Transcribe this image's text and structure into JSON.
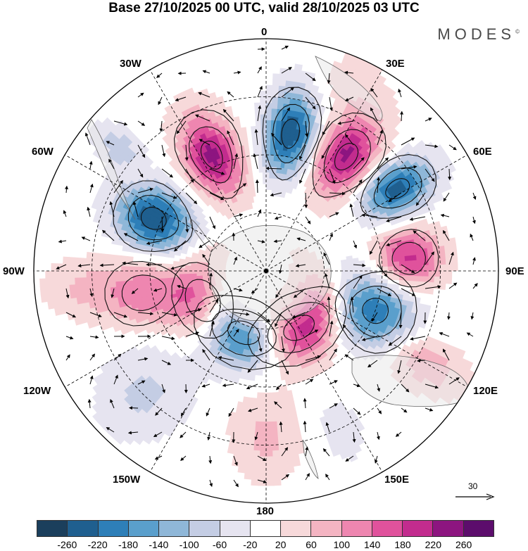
{
  "title": "Base 27/10/2025 00 UTC, valid 28/10/2025 03 UTC",
  "brand": "MODES",
  "brand_mark": "©",
  "longitude_labels": {
    "lon_0": "0",
    "lon_30e": "30E",
    "lon_60e": "60E",
    "lon_90e": "90E",
    "lon_120e": "120E",
    "lon_150e": "150E",
    "lon_180": "180",
    "lon_150w": "150W",
    "lon_120w": "120W",
    "lon_90w": "90W",
    "lon_60w": "60W",
    "lon_30w": "30W"
  },
  "vector_scale": {
    "label": "30"
  },
  "colorbar": {
    "colors": [
      "#1b3f5c",
      "#1f5f8f",
      "#2e7fb8",
      "#5a9fcc",
      "#8fb7d8",
      "#c4cde4",
      "#e6e4f0",
      "#ffffff",
      "#f7d9da",
      "#f4b4c2",
      "#ee86b0",
      "#e0529c",
      "#c22c8e",
      "#8d1580",
      "#5c0d6c"
    ],
    "ticks": [
      "-260",
      "-220",
      "-180",
      "-140",
      "-100",
      "-60",
      "-20",
      "20",
      "60",
      "100",
      "140",
      "180",
      "220",
      "260"
    ]
  },
  "field": {
    "anomalies": [
      {
        "lon": 10,
        "colat": 36,
        "value": -255,
        "lat_spread": 8,
        "lon_spread": 9
      },
      {
        "lon": 35,
        "colat": 36,
        "value": 230,
        "lat_spread": 8,
        "lon_spread": 10
      },
      {
        "lon": 58,
        "colat": 40,
        "value": -235,
        "lat_spread": 7,
        "lon_spread": 9
      },
      {
        "lon": 85,
        "colat": 37,
        "value": 190,
        "lat_spread": 6,
        "lon_spread": 11
      },
      {
        "lon": 110,
        "colat": 30,
        "value": -215,
        "lat_spread": 7,
        "lon_spread": 13
      },
      {
        "lon": 150,
        "colat": 17,
        "value": 250,
        "lat_spread": 6,
        "lon_spread": 17
      },
      {
        "lon": 200,
        "colat": 17,
        "value": -245,
        "lat_spread": 6,
        "lon_spread": 17
      },
      {
        "lon": 245,
        "colat": 18,
        "value": 150,
        "lat_spread": 6,
        "lon_spread": 15
      },
      {
        "lon": 260,
        "colat": 32,
        "value": 125,
        "lat_spread": 8,
        "lon_spread": 12
      },
      {
        "lon": 295,
        "colat": 32,
        "value": -260,
        "lat_spread": 7,
        "lon_spread": 11
      },
      {
        "lon": 335,
        "colat": 33,
        "value": 230,
        "lat_spread": 8,
        "lon_spread": 10
      },
      {
        "lon": 310,
        "colat": 50,
        "value": -90,
        "lat_spread": 5,
        "lon_spread": 6
      },
      {
        "lon": 120,
        "colat": 48,
        "value": 95,
        "lat_spread": 7,
        "lon_spread": 9
      },
      {
        "lon": 180,
        "colat": 43,
        "value": 70,
        "lat_spread": 8,
        "lon_spread": 12
      },
      {
        "lon": 225,
        "colat": 45,
        "value": -70,
        "lat_spread": 9,
        "lon_spread": 15
      },
      {
        "lon": 155,
        "colat": 46,
        "value": -45,
        "lat_spread": 6,
        "lon_spread": 8
      },
      {
        "lon": 265,
        "colat": 48,
        "value": 60,
        "lat_spread": 7,
        "lon_spread": 10
      },
      {
        "lon": 25,
        "colat": 53,
        "value": 45,
        "lat_spread": 6,
        "lon_spread": 12
      }
    ]
  }
}
